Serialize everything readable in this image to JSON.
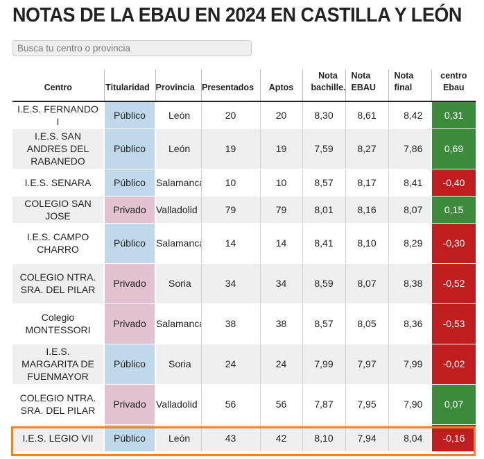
{
  "title": "NOTAS DE LA EBAU EN 2024 EN CASTILLA Y LEÓN",
  "search": {
    "placeholder": "Busca tu centro o provincia",
    "value": ""
  },
  "colors": {
    "publico": "#c0d9ea",
    "privado": "#e2c1d0",
    "positivo": "#3b8b3b",
    "negativo": "#c01e1e",
    "highlight": "#f08322"
  },
  "table": {
    "headers": [
      "Centro",
      "Titularidad",
      "Provincia",
      "Presentados",
      "Aptos",
      "Nota bachille.",
      "Nota EBAU",
      "Nota final",
      "centro Ebau"
    ],
    "rows": [
      {
        "centro": "I.E.S. FERNANDO I",
        "titularidad": "Público",
        "provincia": "León",
        "presentados": "20",
        "aptos": "20",
        "nota_bach": "8,30",
        "nota_ebau": "8,61",
        "nota_final": "8,42",
        "diff": "0,31",
        "tipo": "pub",
        "signo": "pos"
      },
      {
        "centro": "I.E.S. SAN ANDRES DEL RABANEDO",
        "titularidad": "Público",
        "provincia": "León",
        "presentados": "19",
        "aptos": "19",
        "nota_bach": "7,59",
        "nota_ebau": "8,27",
        "nota_final": "7,86",
        "diff": "0,69",
        "tipo": "pub",
        "signo": "pos"
      },
      {
        "centro": "I.E.S. SENARA",
        "titularidad": "Público",
        "provincia": "Salamanca",
        "presentados": "10",
        "aptos": "10",
        "nota_bach": "8,57",
        "nota_ebau": "8,17",
        "nota_final": "8,41",
        "diff": "-0,40",
        "tipo": "pub",
        "signo": "neg"
      },
      {
        "centro": "COLEGIO SAN JOSE",
        "titularidad": "Privado",
        "provincia": "Valladolid",
        "presentados": "79",
        "aptos": "79",
        "nota_bach": "8,01",
        "nota_ebau": "8,16",
        "nota_final": "8,07",
        "diff": "0,15",
        "tipo": "priv",
        "signo": "pos"
      },
      {
        "centro": "I.E.S. CAMPO CHARRO",
        "titularidad": "Público",
        "provincia": "Salamanca",
        "presentados": "14",
        "aptos": "14",
        "nota_bach": "8,41",
        "nota_ebau": "8,10",
        "nota_final": "8,29",
        "diff": "-0,30",
        "tipo": "pub",
        "signo": "neg"
      },
      {
        "centro": "COLEGIO NTRA. SRA. DEL PILAR",
        "titularidad": "Privado",
        "provincia": "Soria",
        "presentados": "34",
        "aptos": "34",
        "nota_bach": "8,59",
        "nota_ebau": "8,07",
        "nota_final": "8,38",
        "diff": "-0,52",
        "tipo": "priv",
        "signo": "neg"
      },
      {
        "centro": "Colegio MONTESSORI",
        "titularidad": "Privado",
        "provincia": "Salamanca",
        "presentados": "38",
        "aptos": "38",
        "nota_bach": "8,57",
        "nota_ebau": "8,05",
        "nota_final": "8,36",
        "diff": "-0,53",
        "tipo": "priv",
        "signo": "neg"
      },
      {
        "centro": "I.E.S. MARGARITA DE FUENMAYOR",
        "titularidad": "Público",
        "provincia": "Soria",
        "presentados": "24",
        "aptos": "24",
        "nota_bach": "7,99",
        "nota_ebau": "7,97",
        "nota_final": "7,99",
        "diff": "-0,02",
        "tipo": "pub",
        "signo": "neg"
      },
      {
        "centro": "COLEGIO NTRA. SRA. DEL PILAR",
        "titularidad": "Privado",
        "provincia": "Valladolid",
        "presentados": "56",
        "aptos": "56",
        "nota_bach": "7,87",
        "nota_ebau": "7,95",
        "nota_final": "7,90",
        "diff": "0,07",
        "tipo": "priv",
        "signo": "pos"
      },
      {
        "centro": "I.E.S. LEGIO VII",
        "titularidad": "Público",
        "provincia": "León",
        "presentados": "43",
        "aptos": "42",
        "nota_bach": "8,10",
        "nota_ebau": "7,94",
        "nota_final": "8,04",
        "diff": "-0,16",
        "tipo": "pub",
        "signo": "neg",
        "highlighted": true
      }
    ]
  }
}
